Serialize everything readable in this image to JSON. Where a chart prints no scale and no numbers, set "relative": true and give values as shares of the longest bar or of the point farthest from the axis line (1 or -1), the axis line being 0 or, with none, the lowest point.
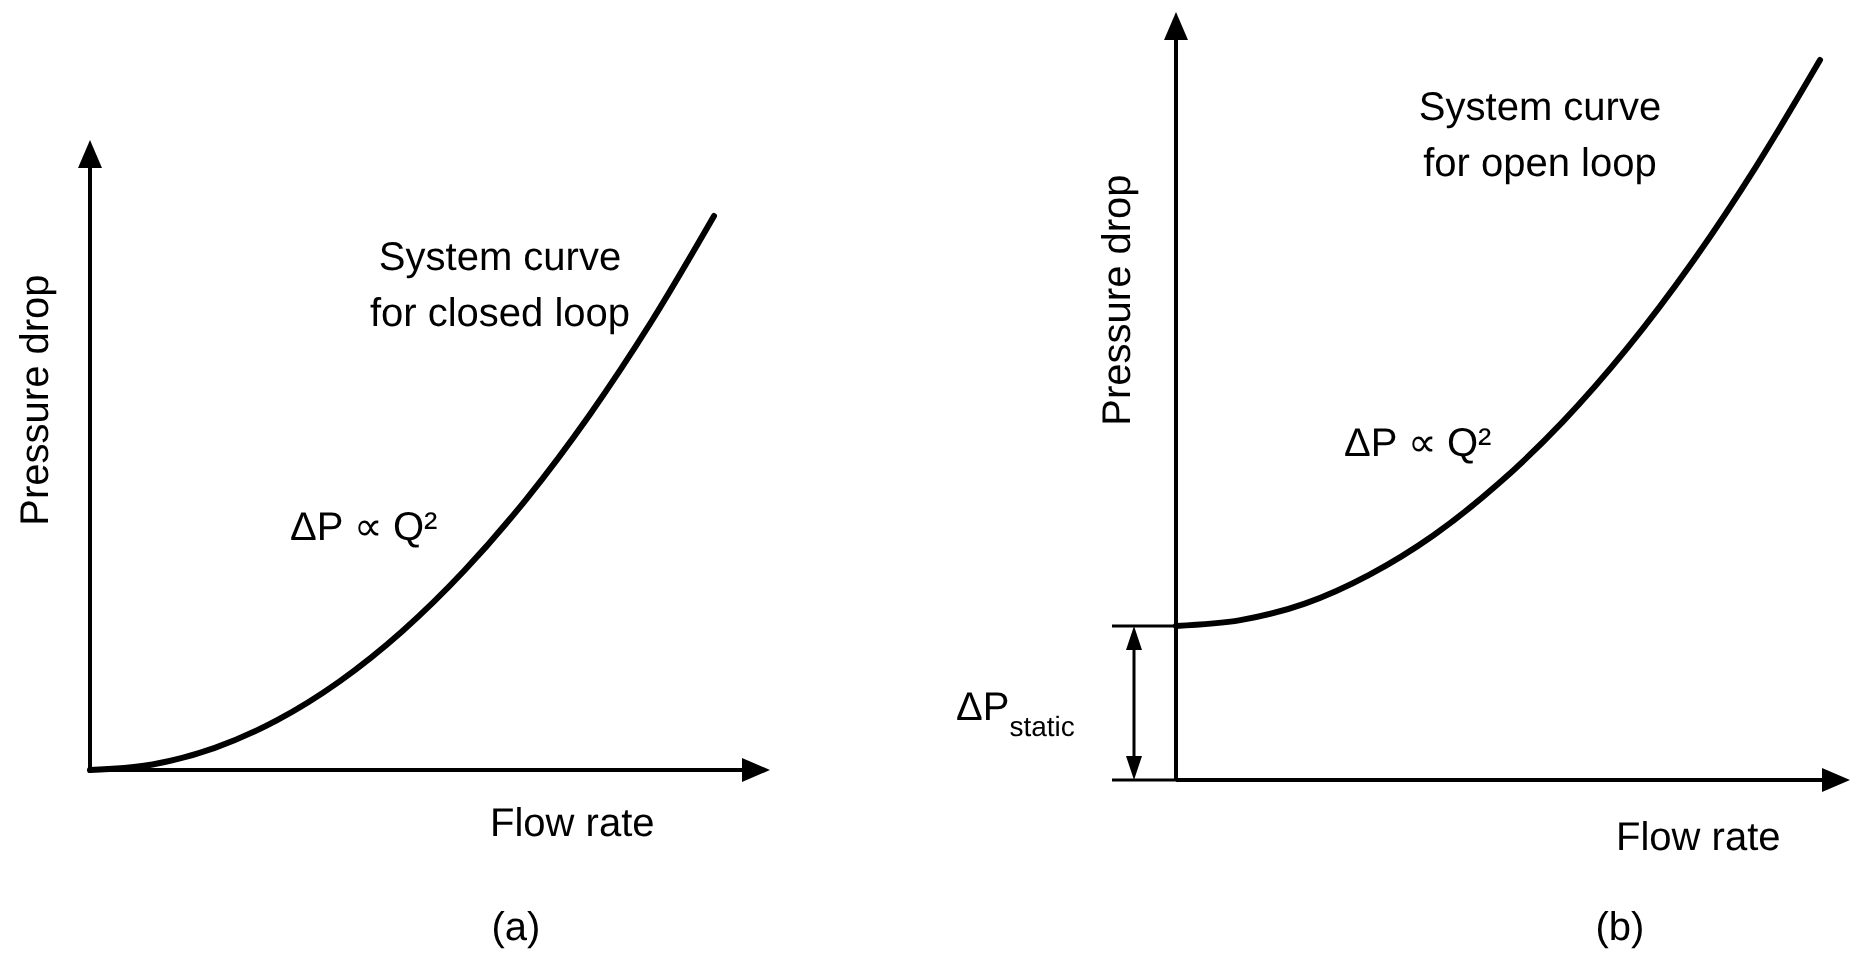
{
  "chart_data": [
    {
      "type": "line",
      "relative": true,
      "xlabel": "Flow rate",
      "ylabel": "Pressure drop",
      "categories": [
        null,
        null,
        null,
        null,
        null,
        null,
        null,
        null,
        null,
        null,
        null
      ],
      "series": [
        {
          "color": "#000000",
          "values": [
            0,
            0.01,
            0.04,
            0.09,
            0.16,
            0.25,
            0.36,
            0.49,
            0.64,
            0.81,
            1
          ]
        }
      ],
      "annotations": [
        "System curve\nfor closed loop",
        "ΔP ∝ Q²",
        "(a)"
      ]
    },
    {
      "type": "line",
      "relative": true,
      "xlabel": "Flow rate",
      "ylabel": "Pressure drop",
      "categories": [
        null,
        null,
        null,
        null,
        null,
        null,
        null,
        null,
        null,
        null,
        null
      ],
      "series": [
        {
          "color": "#000000",
          "values": [
            0.214,
            0.222,
            0.245,
            0.285,
            0.34,
            0.411,
            0.497,
            0.599,
            0.717,
            0.851,
            1
          ]
        }
      ],
      "annotations": [
        "System curve\nfor open loop",
        "ΔP ∝ Q²",
        "ΔP$_{static}$",
        "(b)"
      ]
    }
  ]
}
